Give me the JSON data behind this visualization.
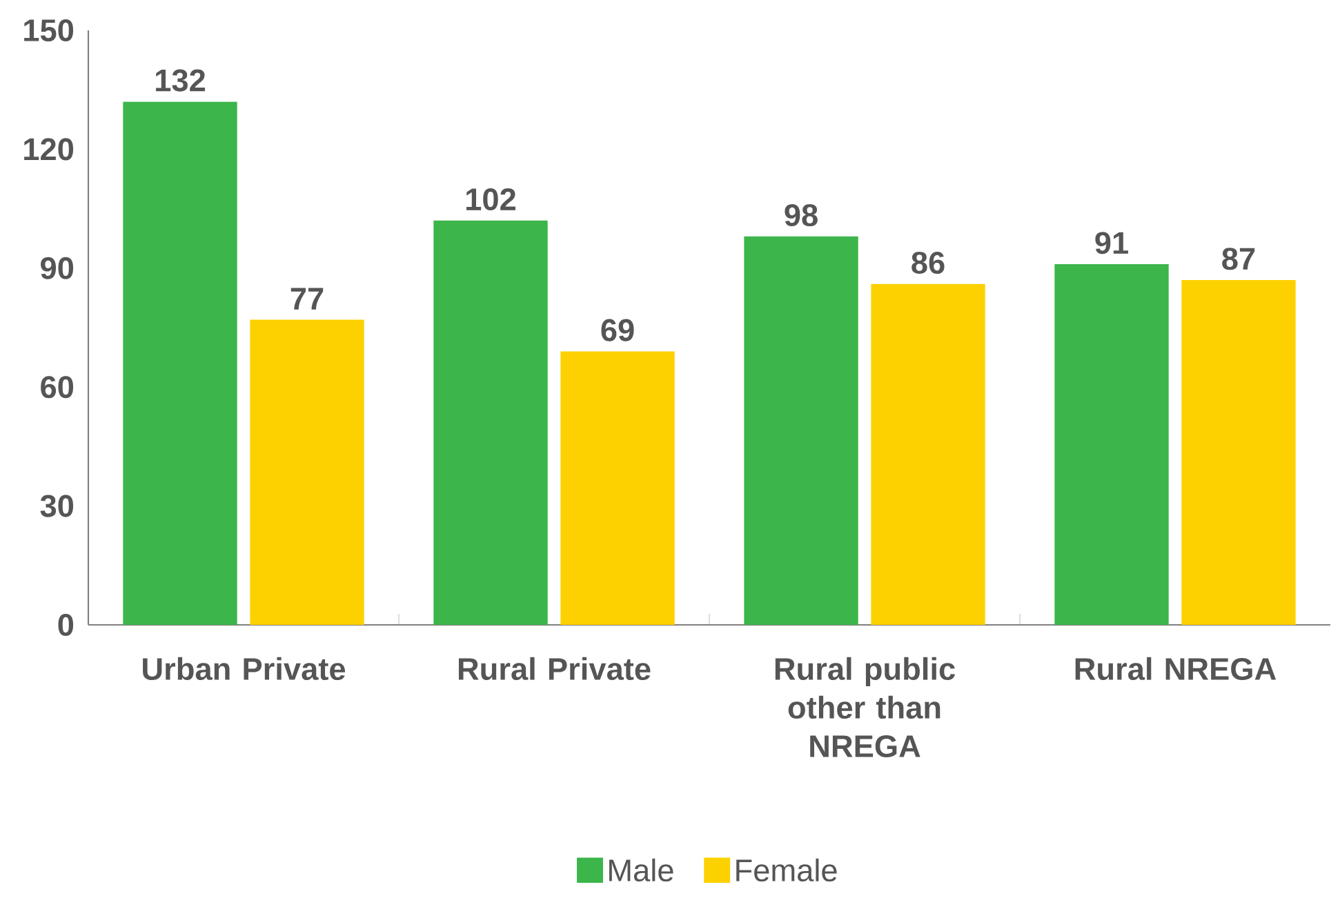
{
  "chart_data": {
    "type": "bar",
    "categories": [
      "Urban Private",
      "Rural Private",
      "Rural public other than NREGA",
      "Rural NREGA"
    ],
    "series": [
      {
        "name": "Male",
        "color": "#3cb54a",
        "values": [
          132,
          102,
          98,
          91
        ]
      },
      {
        "name": "Female",
        "color": "#fdd100",
        "values": [
          77,
          69,
          86,
          87
        ]
      }
    ],
    "ylim": [
      0,
      150
    ],
    "yticks": [
      0,
      30,
      60,
      90,
      120,
      150
    ],
    "data_labels": true,
    "legend": "bottom",
    "grid": false
  }
}
